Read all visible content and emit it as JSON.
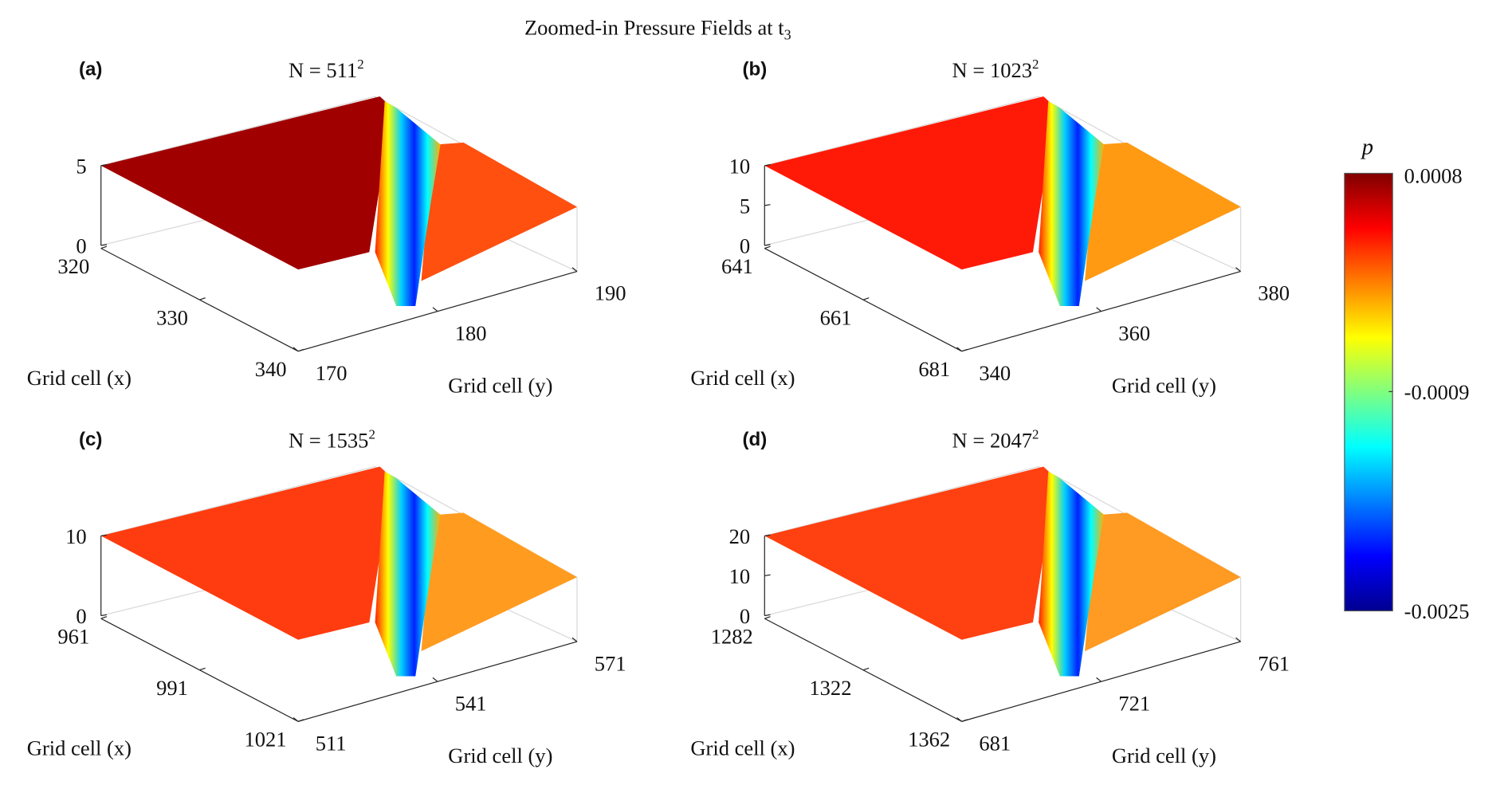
{
  "chart_data": {
    "type": "surface",
    "title": "Zoomed-in Pressure Fields at t",
    "title_subscript": "3",
    "colorbar": {
      "label": "p",
      "colormap": "jet",
      "range": [
        -0.0025,
        0.0008
      ],
      "ticks": [
        "0.0008",
        "-0.0009",
        "-0.0025"
      ]
    },
    "panels": [
      {
        "letter": "(a)",
        "title": "N = 511",
        "title_sup": "2",
        "xlabel": "Grid cell (x)",
        "ylabel": "Grid cell (y)",
        "xticks": [
          "320",
          "330",
          "340"
        ],
        "yticks": [
          "170",
          "180",
          "190"
        ],
        "zticks": [
          "0",
          "5"
        ],
        "colors": {
          "left": "#a00000",
          "right": "#ff5010"
        }
      },
      {
        "letter": "(b)",
        "title": "N = 1023",
        "title_sup": "2",
        "xlabel": "Grid cell (x)",
        "ylabel": "Grid cell (y)",
        "xticks": [
          "641",
          "661",
          "681"
        ],
        "yticks": [
          "340",
          "360",
          "380"
        ],
        "zticks": [
          "0",
          "5",
          "10"
        ],
        "colors": {
          "left": "#ff1a08",
          "right": "#ff9a12"
        }
      },
      {
        "letter": "(c)",
        "title": "N = 1535",
        "title_sup": "2",
        "xlabel": "Grid cell (x)",
        "ylabel": "Grid cell (y)",
        "xticks": [
          "961",
          "991",
          "1021"
        ],
        "yticks": [
          "511",
          "541",
          "571"
        ],
        "zticks": [
          "0",
          "10"
        ],
        "colors": {
          "left": "#ff3c10",
          "right": "#ff9c20"
        }
      },
      {
        "letter": "(d)",
        "title": "N = 2047",
        "title_sup": "2",
        "xlabel": "Grid cell (x)",
        "ylabel": "Grid cell (y)",
        "xticks": [
          "1282",
          "1322",
          "1362"
        ],
        "yticks": [
          "681",
          "721",
          "761"
        ],
        "zticks": [
          "0",
          "10",
          "20"
        ],
        "colors": {
          "left": "#ff4010",
          "right": "#ff9a22"
        }
      }
    ]
  }
}
